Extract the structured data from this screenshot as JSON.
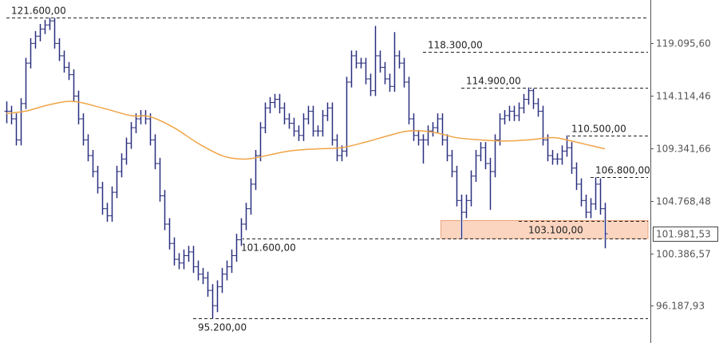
{
  "chart_data": {
    "type": "ohlc",
    "yscale": "log",
    "ylim": [
      94.5,
      123.5
    ],
    "grid": false,
    "colors": {
      "bars": "#2a2e78",
      "moving_average": "#f0a446",
      "zone_fill": "#fbd5c0",
      "zone_border": "#eba37c",
      "levels": "#222222"
    },
    "y_ticks": [
      {
        "value": 119.0956,
        "label": "119.095,60"
      },
      {
        "value": 114.11446,
        "label": "114.114,46"
      },
      {
        "value": 109.34166,
        "label": "109.341,66"
      },
      {
        "value": 104.76848,
        "label": "104.768,48"
      },
      {
        "value": 100.38657,
        "label": "100.386,57"
      },
      {
        "value": 96.18793,
        "label": "96.187,93"
      }
    ],
    "last_price": {
      "value": 101.98153,
      "label": "101.981,53"
    },
    "levels": [
      {
        "value": 121.6,
        "label": "121.600,00",
        "from_bar": 1
      },
      {
        "value": 118.3,
        "label": "118.300,00",
        "from_bar": 88
      },
      {
        "value": 114.9,
        "label": "114.900,00",
        "from_bar": 96
      },
      {
        "value": 110.5,
        "label": "110.500,00",
        "from_bar": 118
      },
      {
        "value": 106.8,
        "label": "106.800,00",
        "from_bar": 123
      },
      {
        "value": 103.1,
        "label": "103.100,00",
        "from_bar": 108
      },
      {
        "value": 101.6,
        "label": "101.600,00",
        "from_bar": 50
      },
      {
        "value": 95.2,
        "label": "95.200,00",
        "from_bar": 40
      }
    ],
    "zone": {
      "low": 101.6,
      "high": 103.1,
      "from_bar": 92
    },
    "bars_hlc": [
      [
        113.6,
        111.6,
        112.7
      ],
      [
        113.2,
        111.5,
        112.0
      ],
      [
        112.5,
        109.6,
        110.1
      ],
      [
        113.9,
        109.6,
        113.4
      ],
      [
        117.7,
        112.9,
        117.2
      ],
      [
        119.6,
        116.7,
        119.1
      ],
      [
        120.3,
        118.6,
        119.8
      ],
      [
        121.0,
        119.3,
        120.5
      ],
      [
        121.4,
        120.0,
        120.9
      ],
      [
        121.6,
        120.4,
        121.3
      ],
      [
        121.6,
        118.6,
        119.1
      ],
      [
        119.6,
        117.4,
        117.9
      ],
      [
        118.4,
        116.3,
        116.8
      ],
      [
        117.3,
        115.6,
        116.1
      ],
      [
        116.6,
        113.6,
        114.1
      ],
      [
        114.6,
        111.5,
        112.0
      ],
      [
        112.5,
        109.6,
        110.1
      ],
      [
        110.6,
        108.2,
        108.7
      ],
      [
        109.2,
        106.8,
        107.3
      ],
      [
        107.8,
        105.4,
        105.9
      ],
      [
        106.4,
        103.6,
        104.1
      ],
      [
        104.6,
        103.0,
        103.5
      ],
      [
        106.0,
        103.0,
        105.5
      ],
      [
        107.8,
        105.0,
        107.3
      ],
      [
        108.9,
        106.8,
        108.4
      ],
      [
        110.3,
        107.9,
        109.8
      ],
      [
        111.7,
        109.3,
        111.2
      ],
      [
        112.5,
        110.7,
        112.0
      ],
      [
        112.8,
        111.5,
        112.3
      ],
      [
        112.8,
        111.5,
        112.0
      ],
      [
        112.5,
        109.6,
        110.1
      ],
      [
        110.6,
        107.5,
        108.0
      ],
      [
        108.5,
        104.7,
        105.2
      ],
      [
        105.7,
        102.3,
        102.8
      ],
      [
        103.3,
        100.7,
        101.2
      ],
      [
        101.7,
        99.4,
        99.9
      ],
      [
        100.4,
        99.1,
        99.6
      ],
      [
        100.7,
        99.1,
        100.2
      ],
      [
        101.0,
        99.7,
        100.5
      ],
      [
        101.0,
        98.8,
        99.3
      ],
      [
        99.8,
        98.2,
        98.7
      ],
      [
        99.2,
        97.9,
        98.4
      ],
      [
        98.9,
        96.9,
        97.4
      ],
      [
        97.9,
        95.2,
        96.2
      ],
      [
        98.2,
        95.7,
        97.7
      ],
      [
        99.2,
        97.2,
        98.7
      ],
      [
        99.8,
        98.2,
        99.3
      ],
      [
        100.7,
        98.8,
        100.2
      ],
      [
        102.0,
        99.7,
        101.5
      ],
      [
        103.3,
        101.0,
        102.8
      ],
      [
        104.6,
        102.3,
        104.1
      ],
      [
        106.7,
        103.6,
        106.2
      ],
      [
        109.2,
        105.7,
        108.7
      ],
      [
        111.7,
        108.2,
        111.2
      ],
      [
        113.5,
        110.7,
        113.0
      ],
      [
        114.0,
        112.5,
        113.5
      ],
      [
        114.3,
        113.0,
        113.8
      ],
      [
        114.3,
        112.5,
        113.0
      ],
      [
        113.5,
        111.5,
        112.0
      ],
      [
        112.5,
        111.1,
        111.6
      ],
      [
        112.1,
        110.4,
        110.9
      ],
      [
        111.4,
        110.0,
        110.5
      ],
      [
        112.5,
        110.0,
        112.0
      ],
      [
        113.2,
        111.5,
        112.7
      ],
      [
        113.2,
        110.4,
        110.9
      ],
      [
        111.4,
        110.4,
        110.9
      ],
      [
        112.8,
        110.4,
        112.3
      ],
      [
        113.5,
        111.8,
        113.0
      ],
      [
        113.5,
        109.6,
        110.1
      ],
      [
        110.6,
        108.2,
        108.7
      ],
      [
        109.6,
        108.2,
        109.1
      ],
      [
        115.9,
        108.6,
        115.4
      ],
      [
        118.4,
        114.9,
        117.9
      ],
      [
        118.4,
        116.7,
        117.2
      ],
      [
        117.7,
        116.7,
        117.2
      ],
      [
        117.7,
        115.2,
        115.7
      ],
      [
        116.2,
        114.1,
        114.6
      ],
      [
        120.8,
        114.1,
        117.9
      ],
      [
        118.4,
        116.3,
        116.8
      ],
      [
        117.3,
        115.2,
        115.7
      ],
      [
        116.2,
        114.5,
        115.0
      ],
      [
        120.2,
        114.5,
        117.9
      ],
      [
        118.4,
        116.7,
        117.2
      ],
      [
        117.7,
        114.9,
        115.4
      ],
      [
        115.9,
        111.5,
        112.0
      ],
      [
        112.5,
        110.0,
        110.5
      ],
      [
        111.0,
        109.6,
        110.1
      ],
      [
        110.6,
        108.0,
        110.1
      ],
      [
        111.4,
        109.6,
        110.9
      ],
      [
        111.7,
        110.4,
        111.2
      ],
      [
        112.5,
        110.7,
        112.0
      ],
      [
        112.5,
        109.6,
        110.1
      ],
      [
        110.6,
        108.2,
        108.7
      ],
      [
        109.2,
        106.8,
        107.3
      ],
      [
        107.8,
        104.3,
        104.8
      ],
      [
        105.3,
        101.6,
        103.8
      ],
      [
        105.3,
        103.3,
        104.8
      ],
      [
        107.4,
        104.3,
        106.9
      ],
      [
        109.2,
        106.4,
        108.7
      ],
      [
        109.9,
        108.2,
        109.4
      ],
      [
        109.9,
        107.5,
        108.0
      ],
      [
        108.5,
        104.0,
        107.3
      ],
      [
        110.6,
        106.8,
        110.1
      ],
      [
        112.5,
        109.6,
        112.0
      ],
      [
        112.8,
        111.5,
        112.3
      ],
      [
        113.2,
        111.8,
        112.7
      ],
      [
        113.2,
        111.8,
        112.3
      ],
      [
        113.5,
        111.8,
        113.0
      ],
      [
        114.3,
        112.5,
        113.8
      ],
      [
        114.9,
        113.3,
        114.6
      ],
      [
        114.8,
        112.9,
        113.4
      ],
      [
        113.9,
        112.2,
        112.7
      ],
      [
        113.2,
        109.6,
        110.1
      ],
      [
        110.6,
        108.2,
        108.7
      ],
      [
        109.2,
        107.9,
        108.4
      ],
      [
        108.9,
        107.9,
        108.4
      ],
      [
        109.6,
        107.9,
        109.1
      ],
      [
        110.5,
        108.6,
        109.4
      ],
      [
        109.9,
        107.1,
        107.6
      ],
      [
        108.1,
        105.7,
        106.2
      ],
      [
        106.7,
        104.3,
        104.8
      ],
      [
        105.3,
        103.3,
        103.8
      ],
      [
        105.0,
        103.3,
        104.5
      ],
      [
        106.8,
        104.0,
        106.2
      ],
      [
        106.7,
        103.6,
        104.1
      ],
      [
        104.6,
        100.8,
        102.0
      ]
    ],
    "moving_average": [
      [
        1,
        112.5
      ],
      [
        5,
        112.7
      ],
      [
        10,
        113.3
      ],
      [
        15,
        113.6
      ],
      [
        21,
        113.0
      ],
      [
        27,
        112.3
      ],
      [
        31,
        112.2
      ],
      [
        36,
        111.2
      ],
      [
        41,
        109.8
      ],
      [
        46,
        108.7
      ],
      [
        50,
        108.4
      ],
      [
        53,
        108.5
      ],
      [
        60,
        109.1
      ],
      [
        66,
        109.3
      ],
      [
        71,
        109.4
      ],
      [
        76,
        109.9
      ],
      [
        81,
        110.5
      ],
      [
        85,
        110.9
      ],
      [
        90,
        110.8
      ],
      [
        95,
        110.3
      ],
      [
        100,
        110.1
      ],
      [
        105,
        110.0
      ],
      [
        110,
        110.1
      ],
      [
        115,
        110.3
      ],
      [
        118,
        110.1
      ],
      [
        123,
        109.6
      ],
      [
        126,
        109.3
      ]
    ]
  }
}
